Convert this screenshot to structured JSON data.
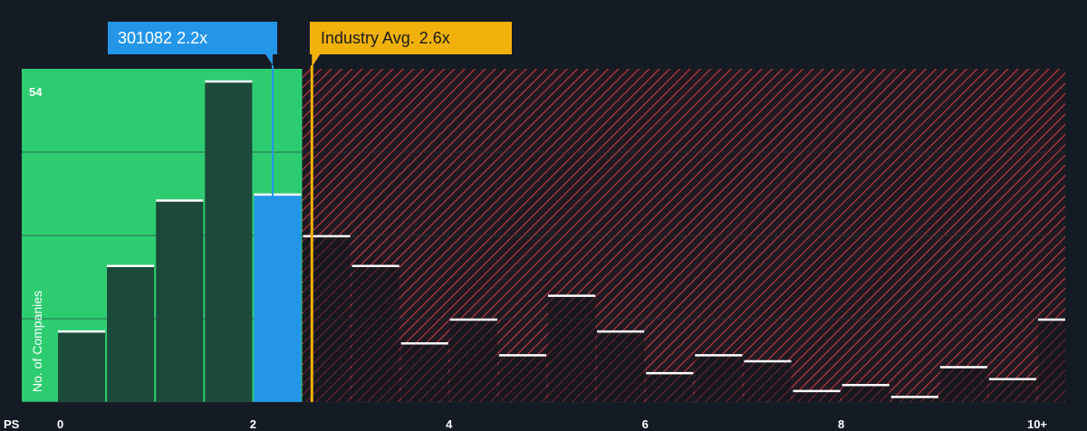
{
  "chart_data": {
    "type": "bar",
    "x_title": "PS",
    "ylabel": "No. of Companies",
    "y_max_label": "54",
    "xlim": [
      -0.5,
      10.2
    ],
    "ylim": [
      0,
      54
    ],
    "x_ticks": [
      {
        "value": 0,
        "label": "0"
      },
      {
        "value": 2,
        "label": "2"
      },
      {
        "value": 4,
        "label": "4"
      },
      {
        "value": 6,
        "label": "6"
      },
      {
        "value": 8,
        "label": "8"
      },
      {
        "value": 10,
        "label": "10+"
      }
    ],
    "bins": [
      {
        "x0": 0.0,
        "x1": 0.5,
        "value": 12
      },
      {
        "x0": 0.5,
        "x1": 1.0,
        "value": 23
      },
      {
        "x0": 1.0,
        "x1": 1.5,
        "value": 34
      },
      {
        "x0": 1.5,
        "x1": 2.0,
        "value": 54
      },
      {
        "x0": 2.0,
        "x1": 2.5,
        "value": 35
      },
      {
        "x0": 2.5,
        "x1": 3.0,
        "value": 28
      },
      {
        "x0": 3.0,
        "x1": 3.5,
        "value": 23
      },
      {
        "x0": 3.5,
        "x1": 4.0,
        "value": 10
      },
      {
        "x0": 4.0,
        "x1": 4.5,
        "value": 14
      },
      {
        "x0": 4.5,
        "x1": 5.0,
        "value": 8
      },
      {
        "x0": 5.0,
        "x1": 5.5,
        "value": 18
      },
      {
        "x0": 5.5,
        "x1": 6.0,
        "value": 12
      },
      {
        "x0": 6.0,
        "x1": 6.5,
        "value": 5
      },
      {
        "x0": 6.5,
        "x1": 7.0,
        "value": 8
      },
      {
        "x0": 7.0,
        "x1": 7.5,
        "value": 7
      },
      {
        "x0": 7.5,
        "x1": 8.0,
        "value": 2
      },
      {
        "x0": 8.0,
        "x1": 8.5,
        "value": 3
      },
      {
        "x0": 8.5,
        "x1": 9.0,
        "value": 1
      },
      {
        "x0": 9.0,
        "x1": 9.5,
        "value": 6
      },
      {
        "x0": 9.5,
        "x1": 10.0,
        "value": 4
      },
      {
        "x0": 10.0,
        "x1": 10.5,
        "value": 14
      }
    ],
    "fair_threshold": 2.5,
    "company": {
      "label": "301082 2.2x",
      "value": 2.2
    },
    "industry": {
      "label": "Industry Avg. 2.6x",
      "value": 2.6
    },
    "colors": {
      "fair_zone": "#2ecc71",
      "bar_dark": "#1c4a3a",
      "company_bar": "#2496e8",
      "company_callout": "#2496e8",
      "industry_callout": "#f0b10b",
      "hatch": "#c33a44",
      "hatch_bg": "#1f1a22",
      "grid": "#2a313c",
      "bar_top": "#ffffff"
    }
  }
}
